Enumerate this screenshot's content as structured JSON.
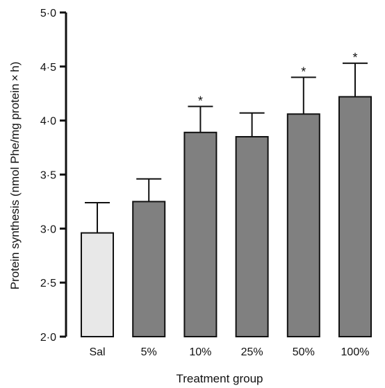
{
  "chart_data": {
    "type": "bar",
    "title": "",
    "xlabel": "Treatment group",
    "ylabel": "Protein synthesis (nmol Phe/mg protein × h)",
    "ylim": [
      2.0,
      5.0
    ],
    "yticks": [
      2.0,
      2.5,
      3.0,
      3.5,
      4.0,
      4.5,
      5.0
    ],
    "ytick_labels": [
      "2·0",
      "2·5",
      "3·0",
      "3·5",
      "4·0",
      "4·5",
      "5·0"
    ],
    "categories": [
      "Sal",
      "5%",
      "10%",
      "25%",
      "50%",
      "100%"
    ],
    "values": [
      2.96,
      3.25,
      3.89,
      3.85,
      4.06,
      4.22
    ],
    "error_upper": [
      3.24,
      3.46,
      4.13,
      4.07,
      4.4,
      4.53
    ],
    "significance": [
      "",
      "",
      "*",
      "",
      "*",
      "*"
    ],
    "colors": [
      "#e8e8e8",
      "#808080",
      "#808080",
      "#808080",
      "#808080",
      "#808080"
    ],
    "edge_color": "#111111",
    "grid": false,
    "legend": "none"
  }
}
